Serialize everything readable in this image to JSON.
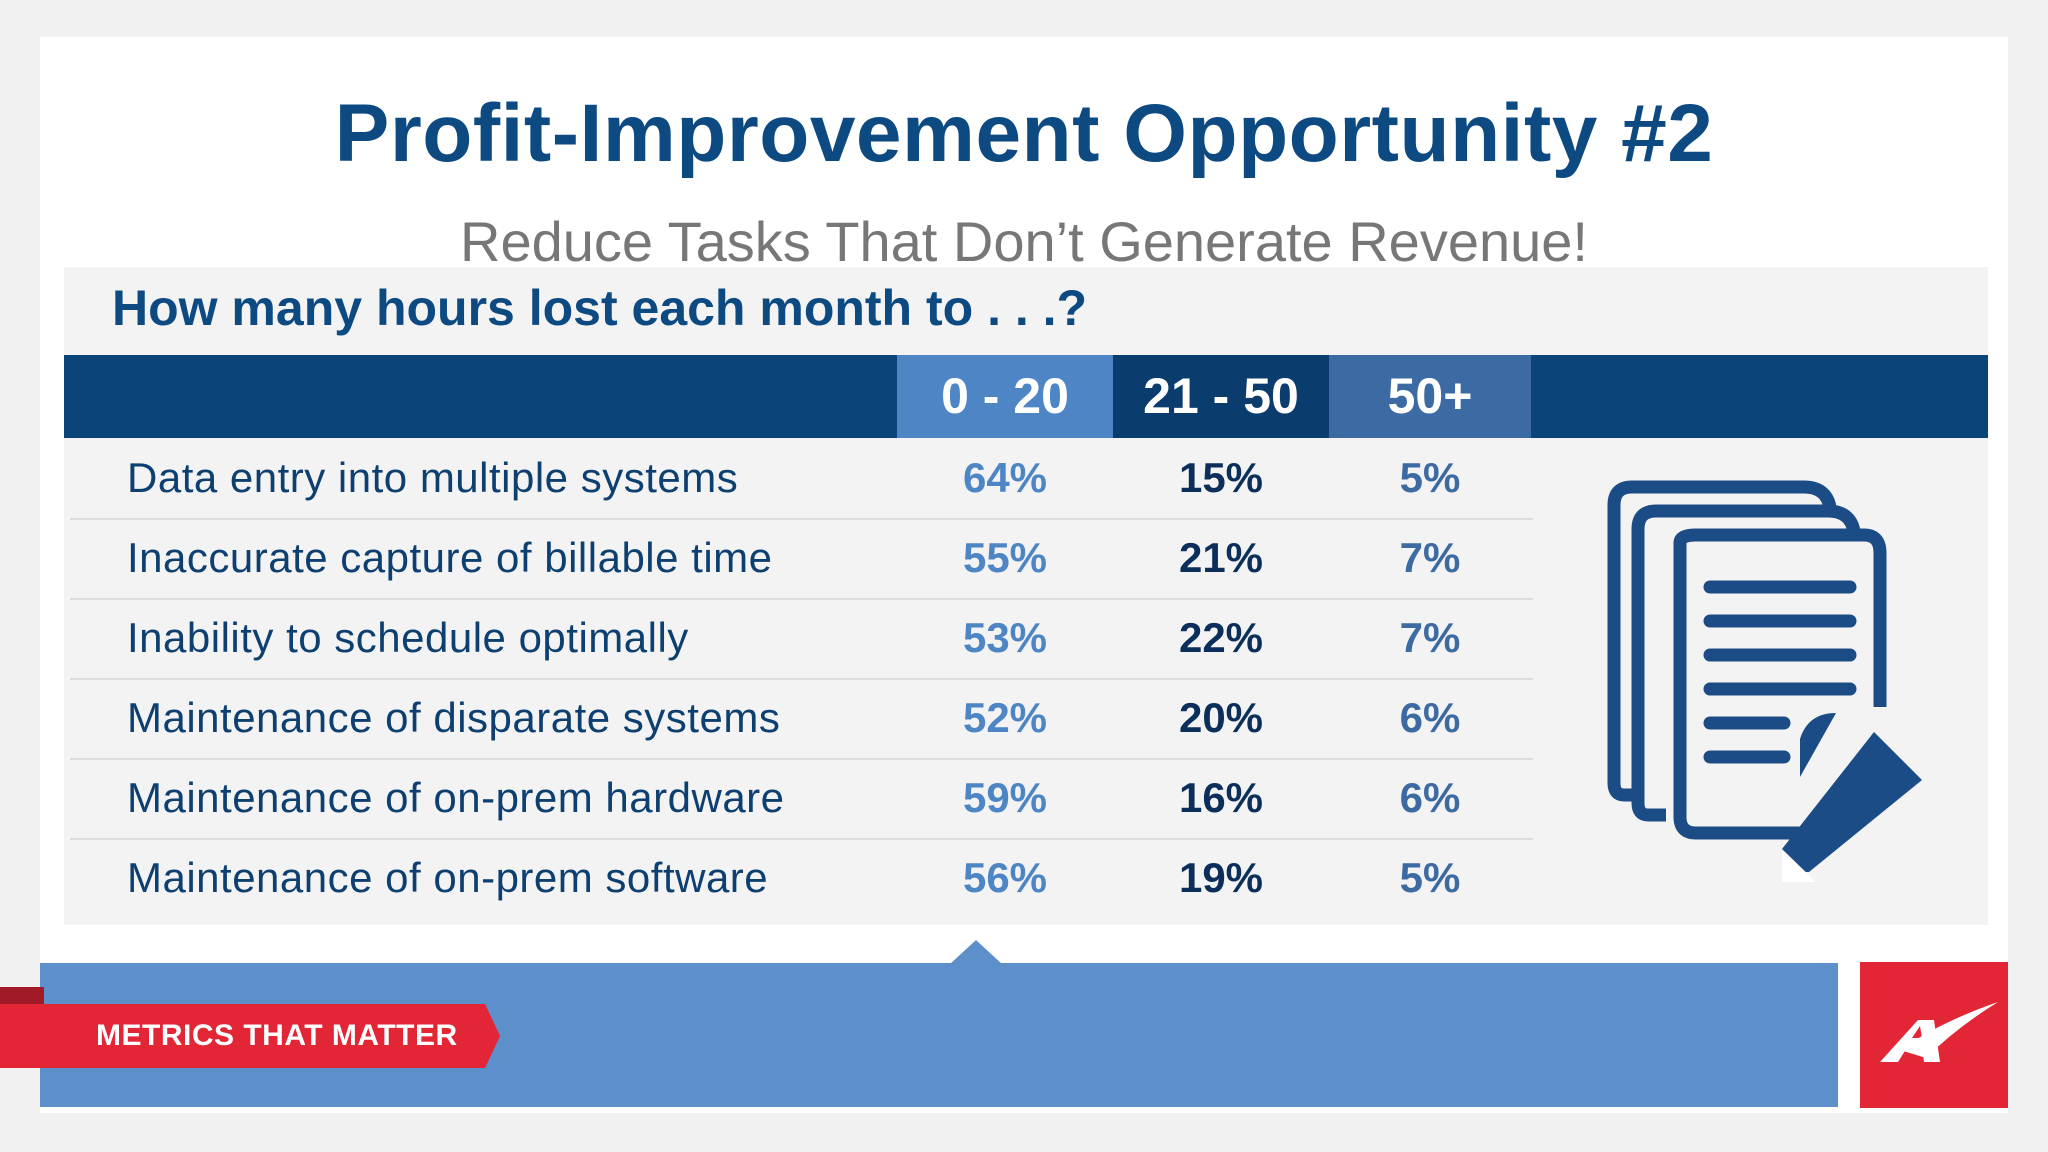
{
  "title": "Profit-Improvement Opportunity #2",
  "subtitle": "Reduce Tasks That Don’t Generate Revenue!",
  "question": "How many hours lost each month to . . .?",
  "columns": [
    "0 - 20",
    "21 - 50",
    "50+"
  ],
  "rows": [
    {
      "label": "Data entry into multiple systems",
      "values": [
        "64%",
        "15%",
        "5%"
      ]
    },
    {
      "label": "Inaccurate capture of billable time",
      "values": [
        "55%",
        "21%",
        "7%"
      ]
    },
    {
      "label": "Inability to schedule optimally",
      "values": [
        "53%",
        "22%",
        "7%"
      ]
    },
    {
      "label": "Maintenance of disparate systems",
      "values": [
        "52%",
        "20%",
        "6%"
      ]
    },
    {
      "label": "Maintenance of on-prem hardware",
      "values": [
        "59%",
        "16%",
        "6%"
      ]
    },
    {
      "label": "Maintenance of on-prem software",
      "values": [
        "56%",
        "19%",
        "5%"
      ]
    }
  ],
  "footer": {
    "ribbon_text": "METRICS THAT MATTER"
  },
  "icons": {
    "document": "document-edit-icon",
    "logo": "brand-logo-icon"
  },
  "colors": {
    "navy": "#0b4479",
    "accent_blue": "#5d8fcb",
    "red": "#e32636",
    "title_blue": "#0d4a82"
  }
}
